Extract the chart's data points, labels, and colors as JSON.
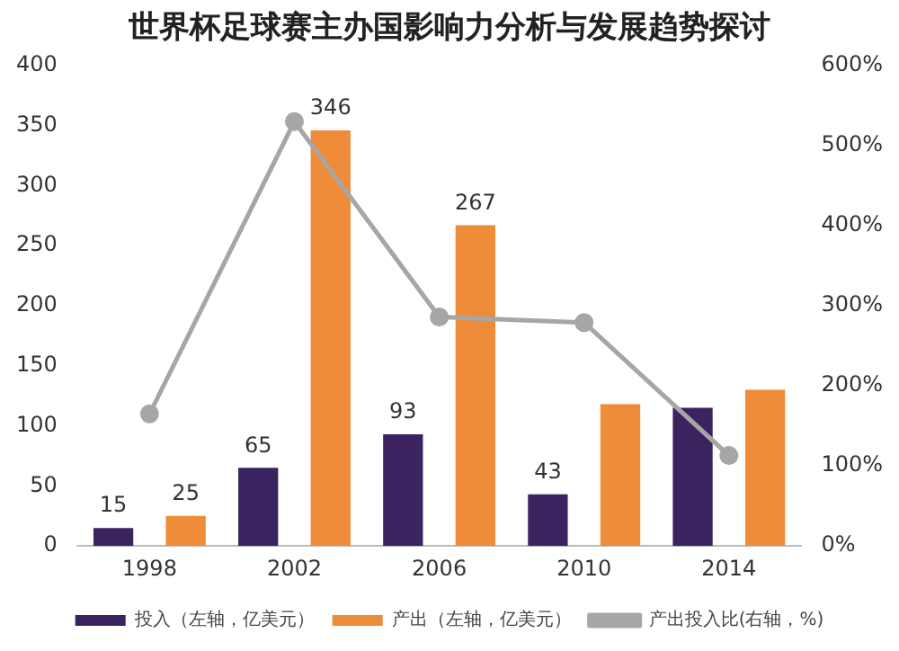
{
  "chart_data": {
    "type": "bar",
    "title": "世界杯足球赛主办国影响力分析与发展趋势探讨",
    "categories": [
      "1998",
      "2002",
      "2006",
      "2010",
      "2014"
    ],
    "series": [
      {
        "name": "投入（左轴，亿美元）",
        "color": "#3b2360",
        "values": [
          15,
          65,
          93,
          43,
          115
        ],
        "value_labels": [
          "15",
          "65",
          "93",
          "43",
          null
        ]
      },
      {
        "name": "产出（左轴，亿美元）",
        "color": "#ee8c3a",
        "values": [
          25,
          346,
          267,
          118,
          130
        ],
        "value_labels": [
          "25",
          "346",
          "267",
          null,
          null
        ]
      },
      {
        "name": "产出投入比(右轴，%)",
        "color": "#a6a6a6",
        "type": "line",
        "axis": "y2",
        "marker": "circle",
        "values": [
          165,
          530,
          286,
          279,
          113
        ]
      }
    ],
    "ylim": [
      0,
      400
    ],
    "yticks": [
      0,
      50,
      100,
      150,
      200,
      250,
      300,
      350,
      400
    ],
    "y2lim": [
      0,
      600
    ],
    "y2ticks": [
      {
        "value": 0,
        "label": "0%"
      },
      {
        "value": 100,
        "label": "100%"
      },
      {
        "value": 200,
        "label": "200%"
      },
      {
        "value": 300,
        "label": "300%"
      },
      {
        "value": 400,
        "label": "400%"
      },
      {
        "value": 500,
        "label": "500%"
      },
      {
        "value": 600,
        "label": "600%"
      }
    ],
    "grid": false,
    "legend": "bottom"
  }
}
